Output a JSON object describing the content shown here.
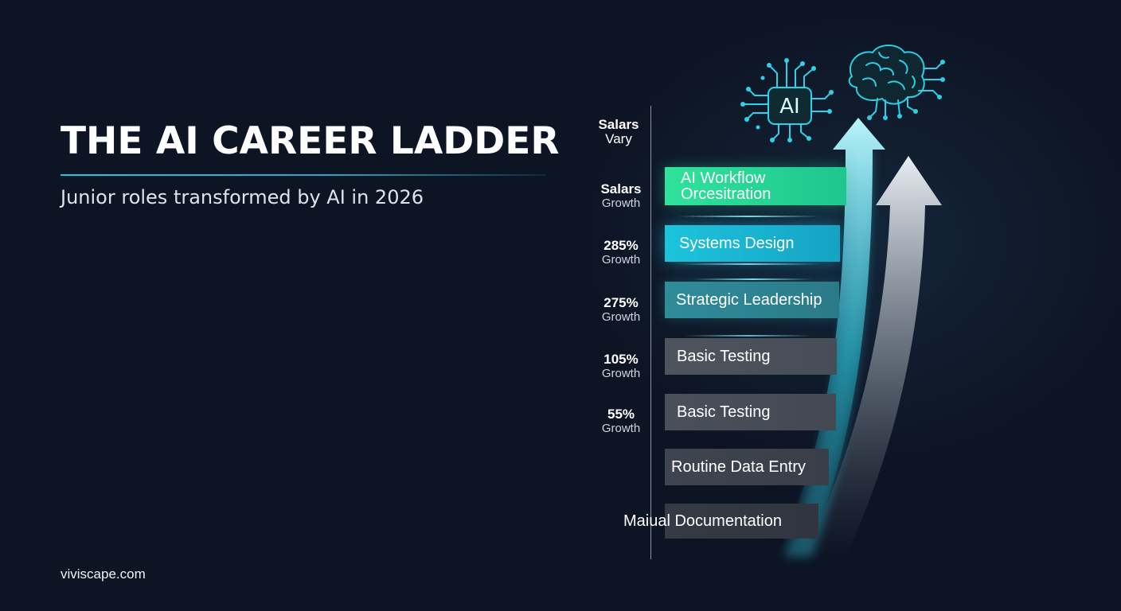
{
  "title": "THE AI CAREER LADDER",
  "subtitle": "Junior roles transformed by AI in 2026",
  "brand": "viviscape.com",
  "chip_label": "AI",
  "rows": [
    {
      "value": "Salars",
      "unit": "Vary",
      "role": ""
    },
    {
      "value": "Salars",
      "unit": "Growth",
      "role_lines": [
        "AI Workflow",
        "Orcesitration"
      ]
    },
    {
      "value": "285%",
      "unit": "Growth",
      "role": "Systems Design"
    },
    {
      "value": "275%",
      "unit": "Growth",
      "role": "Strategic Leadership"
    },
    {
      "value": "105%",
      "unit": "Growth",
      "role": "Basic Testing"
    },
    {
      "value": "55%",
      "unit": "Growth",
      "role": "Basic Testing"
    },
    {
      "value": "",
      "unit": "",
      "role": "Routine Data Entry"
    },
    {
      "value": "",
      "unit": "",
      "role": "Maiual Documentation"
    }
  ],
  "colors": {
    "background": "#0d1424",
    "accent_green": "#2fe39a",
    "accent_cyan": "#1dc3dd",
    "accent_teal": "#2f8c99",
    "bar_gray": "#4f555f"
  },
  "icons": [
    "circuit-chip-icon",
    "brain-circuit-icon",
    "arrow-up-icon"
  ]
}
